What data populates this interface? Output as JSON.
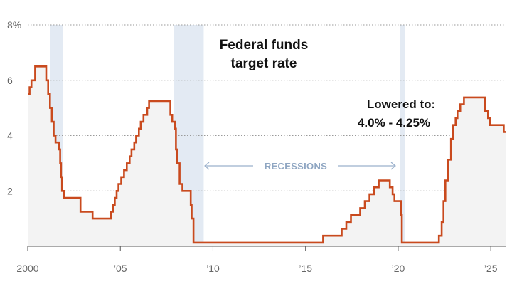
{
  "chart_data": {
    "type": "line",
    "title_lines": [
      "Federal funds",
      "target rate"
    ],
    "annotation_lines": [
      "Lowered to:",
      "4.0% - 4.25%"
    ],
    "recessions_label": "RECESSIONS",
    "xlim": [
      2000,
      2025.8
    ],
    "ylim": [
      0,
      8
    ],
    "x_ticks": [
      {
        "value": 2000,
        "label": "2000"
      },
      {
        "value": 2005,
        "label": "’05"
      },
      {
        "value": 2010,
        "label": "’10"
      },
      {
        "value": 2015,
        "label": "’15"
      },
      {
        "value": 2020,
        "label": "’20"
      },
      {
        "value": 2025,
        "label": "’25"
      }
    ],
    "y_ticks": [
      {
        "value": 8,
        "label": "8%"
      },
      {
        "value": 6,
        "label": "6"
      },
      {
        "value": 4,
        "label": "4"
      },
      {
        "value": 2,
        "label": "2"
      }
    ],
    "grid": true,
    "recession_periods": [
      [
        2001.2,
        2001.9
      ],
      [
        2007.9,
        2009.5
      ],
      [
        2020.1,
        2020.35
      ]
    ],
    "series": [
      {
        "color": "#c94a1e",
        "points": [
          [
            2000.0,
            5.5
          ],
          [
            2000.1,
            5.75
          ],
          [
            2000.2,
            6.0
          ],
          [
            2000.4,
            6.5
          ],
          [
            2001.0,
            6.0
          ],
          [
            2001.1,
            5.5
          ],
          [
            2001.2,
            5.0
          ],
          [
            2001.3,
            4.5
          ],
          [
            2001.4,
            4.0
          ],
          [
            2001.5,
            3.75
          ],
          [
            2001.7,
            3.5
          ],
          [
            2001.75,
            3.0
          ],
          [
            2001.8,
            2.5
          ],
          [
            2001.85,
            2.0
          ],
          [
            2001.95,
            1.75
          ],
          [
            2002.85,
            1.25
          ],
          [
            2003.5,
            1.0
          ],
          [
            2004.5,
            1.25
          ],
          [
            2004.6,
            1.5
          ],
          [
            2004.7,
            1.75
          ],
          [
            2004.8,
            2.0
          ],
          [
            2004.9,
            2.25
          ],
          [
            2005.05,
            2.5
          ],
          [
            2005.2,
            2.75
          ],
          [
            2005.35,
            3.0
          ],
          [
            2005.5,
            3.25
          ],
          [
            2005.6,
            3.5
          ],
          [
            2005.75,
            3.75
          ],
          [
            2005.85,
            4.0
          ],
          [
            2006.0,
            4.25
          ],
          [
            2006.1,
            4.5
          ],
          [
            2006.25,
            4.75
          ],
          [
            2006.45,
            5.0
          ],
          [
            2006.55,
            5.25
          ],
          [
            2007.7,
            4.75
          ],
          [
            2007.8,
            4.5
          ],
          [
            2007.95,
            4.25
          ],
          [
            2008.0,
            3.5
          ],
          [
            2008.05,
            3.0
          ],
          [
            2008.2,
            2.25
          ],
          [
            2008.35,
            2.0
          ],
          [
            2008.8,
            1.5
          ],
          [
            2008.85,
            1.0
          ],
          [
            2008.95,
            0.13
          ],
          [
            2015.95,
            0.38
          ],
          [
            2016.95,
            0.63
          ],
          [
            2017.2,
            0.88
          ],
          [
            2017.45,
            1.13
          ],
          [
            2017.95,
            1.38
          ],
          [
            2018.2,
            1.63
          ],
          [
            2018.45,
            1.88
          ],
          [
            2018.7,
            2.13
          ],
          [
            2018.95,
            2.38
          ],
          [
            2019.55,
            2.13
          ],
          [
            2019.7,
            1.88
          ],
          [
            2019.8,
            1.63
          ],
          [
            2020.15,
            1.13
          ],
          [
            2020.2,
            0.13
          ],
          [
            2022.2,
            0.38
          ],
          [
            2022.35,
            0.88
          ],
          [
            2022.45,
            1.63
          ],
          [
            2022.55,
            2.38
          ],
          [
            2022.7,
            3.13
          ],
          [
            2022.85,
            3.88
          ],
          [
            2022.95,
            4.38
          ],
          [
            2023.1,
            4.63
          ],
          [
            2023.2,
            4.88
          ],
          [
            2023.35,
            5.13
          ],
          [
            2023.55,
            5.38
          ],
          [
            2024.7,
            4.88
          ],
          [
            2024.85,
            4.63
          ],
          [
            2024.95,
            4.38
          ],
          [
            2025.7,
            4.13
          ],
          [
            2025.8,
            4.13
          ]
        ]
      }
    ]
  }
}
